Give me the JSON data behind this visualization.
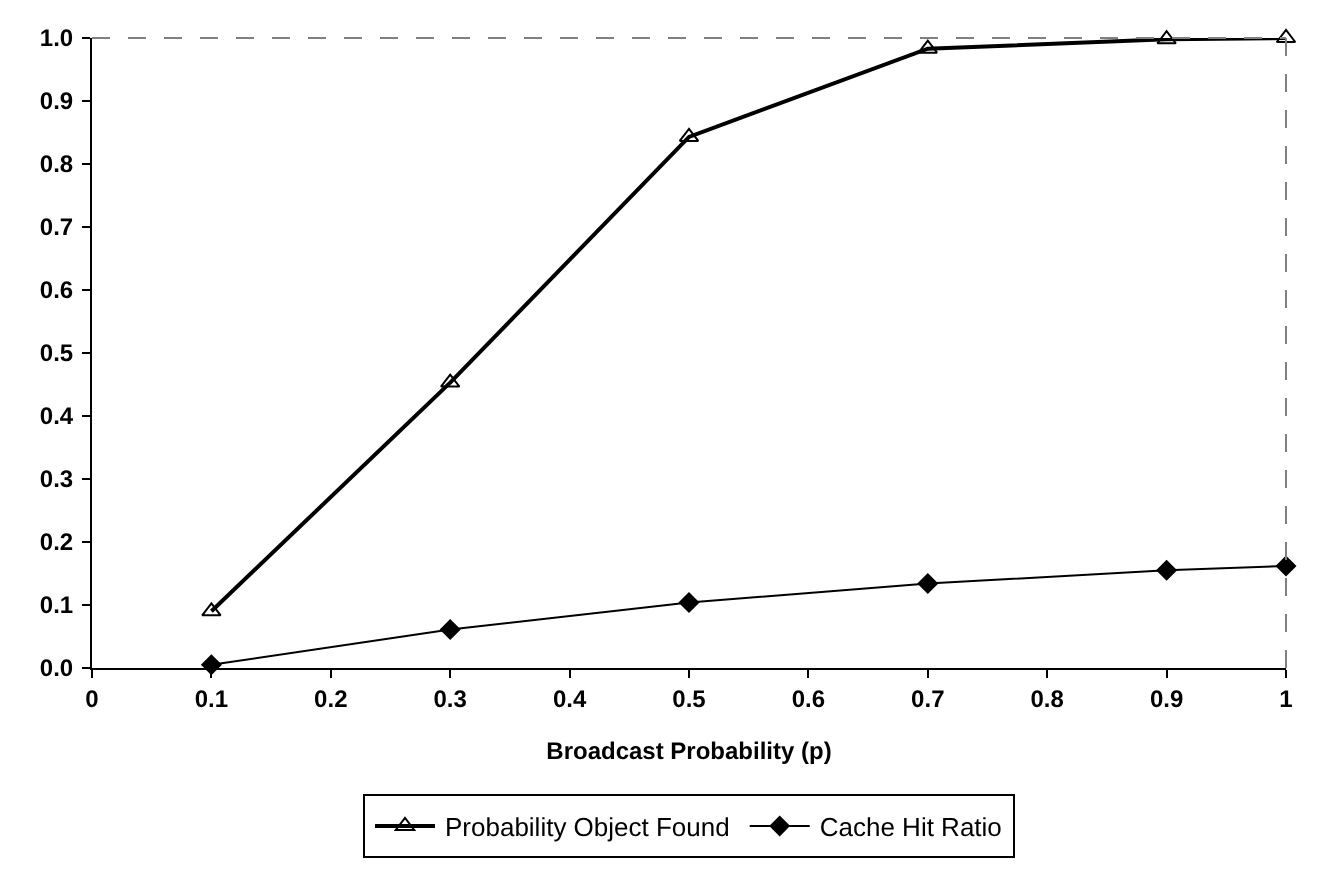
{
  "chart_data": {
    "type": "line",
    "xlabel": "Broadcast Probability (p)",
    "x": [
      0.1,
      0.3,
      0.5,
      0.7,
      0.9,
      1
    ],
    "series": [
      {
        "name": "Probability Object Found",
        "color": "#000000",
        "marker": "triangle",
        "values": [
          0.09,
          0.453,
          0.843,
          0.983,
          0.998,
          1.0
        ]
      },
      {
        "name": "Cache Hit Ratio",
        "color": "#000000",
        "marker": "diamond",
        "values": [
          0.005,
          0.061,
          0.104,
          0.134,
          0.155,
          0.162
        ]
      }
    ],
    "xlim": [
      0,
      1
    ],
    "ylim": [
      0,
      1
    ],
    "xticks": [
      0,
      0.1,
      0.2,
      0.3,
      0.4,
      0.5,
      0.6,
      0.7,
      0.8,
      0.9,
      1
    ],
    "yticks": [
      {
        "value": 0,
        "label": "0.0"
      },
      0.1,
      0.2,
      0.3,
      0.4,
      0.5,
      0.6,
      0.7,
      0.8,
      0.9,
      {
        "value": 1,
        "label": "1.0"
      }
    ],
    "legend": "bottom",
    "line_style": "solid"
  }
}
